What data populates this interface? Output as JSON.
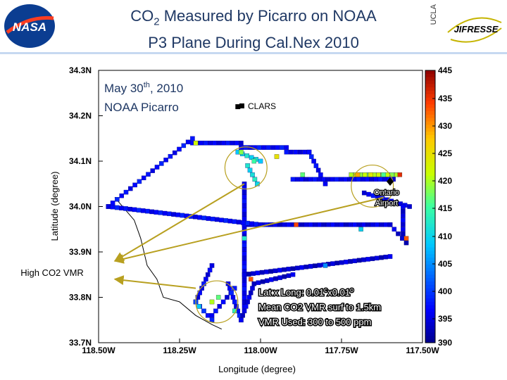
{
  "header": {
    "title_prefix": "CO",
    "title_sub": "2",
    "title_rest": " Measured by Picarro on NOAA",
    "title_line2": "P3 Plane During Cal.Nex 2010",
    "logo_left": "NASA",
    "logo_right_1": "UCLA",
    "logo_right_2": "JIFRESSE"
  },
  "annotations": {
    "date_prefix": "May 30",
    "date_sup": "th",
    "date_suffix": ", 2010",
    "instrument": "NOAA Picarro",
    "legend_clars": "CLARS",
    "airport_1": "Ontario",
    "airport_2": "Airport",
    "high_co2": "High CO2 VMR",
    "info_1_prefix": "Lat x Long: 0.01",
    "info_1_mid": "x0.01",
    "info_1_deg": "o",
    "info_2": "Mean CO2 VMR surf to 1.5km",
    "info_3": "VMR Used: 300 to 500 ppm"
  },
  "chart_data": {
    "type": "heatmap",
    "xlabel": "Longitude (degree)",
    "ylabel": "Latitude (degree)",
    "xlim": [
      -118.5,
      -117.5
    ],
    "ylim": [
      33.7,
      34.3
    ],
    "x_ticks": [
      -118.5,
      -118.25,
      -118.0,
      -117.75,
      -117.5
    ],
    "x_tick_labels": [
      "118.50W",
      "118.25W",
      "118.00W",
      "117.75W",
      "117.50W"
    ],
    "y_ticks": [
      34.3,
      34.2,
      34.1,
      34.0,
      33.9,
      33.8,
      33.7
    ],
    "y_tick_labels": [
      "34.3N",
      "34.2N",
      "34.1N",
      "34.0N",
      "33.9N",
      "33.8N",
      "33.7N"
    ],
    "colorbar": {
      "min": 390,
      "max": 445,
      "ticks": [
        445,
        435,
        430,
        425,
        420,
        415,
        410,
        405,
        400,
        395,
        390
      ],
      "tick_labels": [
        "445",
        "435",
        "430",
        "425",
        "420",
        "415",
        "410",
        "405",
        "400",
        "395",
        "390"
      ]
    },
    "markers": [
      {
        "name": "CLARS",
        "lon": -118.07,
        "lat": 34.22
      },
      {
        "name": "Ontario Airport",
        "lon": -117.6,
        "lat": 34.055
      }
    ],
    "highlight_circles": [
      {
        "lon": -118.045,
        "lat": 34.085,
        "r_lon": 0.065
      },
      {
        "lon": -117.655,
        "lat": 34.045,
        "r_lon": 0.065
      },
      {
        "lon": -118.135,
        "lat": 33.79,
        "r_lon": 0.065
      }
    ],
    "track_segments": [
      {
        "from": [
          -118.47,
          34.0
        ],
        "to": [
          -118.21,
          34.15
        ],
        "value": 397
      },
      {
        "from": [
          -118.21,
          34.14
        ],
        "to": [
          -118.06,
          34.14
        ],
        "value": 396
      },
      {
        "from": [
          -118.06,
          34.13
        ],
        "to": [
          -117.92,
          34.13
        ],
        "value": 397
      },
      {
        "from": [
          -117.92,
          34.12
        ],
        "to": [
          -117.85,
          34.12
        ],
        "value": 396
      },
      {
        "from": [
          -117.85,
          34.12
        ],
        "to": [
          -117.8,
          34.05
        ],
        "value": 397
      },
      {
        "from": [
          -118.07,
          34.12
        ],
        "to": [
          -118.0,
          34.1
        ],
        "value": 412
      },
      {
        "from": [
          -118.04,
          34.09
        ],
        "to": [
          -118.01,
          34.05
        ],
        "value": 413
      },
      {
        "from": [
          -118.05,
          34.05
        ],
        "to": [
          -118.05,
          33.78
        ],
        "value": 396
      },
      {
        "from": [
          -118.05,
          33.96
        ],
        "to": [
          -117.6,
          33.96
        ],
        "value": 395
      },
      {
        "from": [
          -117.6,
          33.96
        ],
        "to": [
          -117.55,
          33.92
        ],
        "value": 394
      },
      {
        "from": [
          -118.47,
          34.0
        ],
        "to": [
          -118.0,
          33.96
        ],
        "value": 397
      },
      {
        "from": [
          -118.05,
          33.85
        ],
        "to": [
          -117.6,
          33.89
        ],
        "value": 394
      },
      {
        "from": [
          -118.15,
          33.87
        ],
        "to": [
          -118.2,
          33.79
        ],
        "value": 396
      },
      {
        "from": [
          -118.2,
          33.79
        ],
        "to": [
          -118.15,
          33.75
        ],
        "value": 399
      },
      {
        "from": [
          -118.15,
          33.76
        ],
        "to": [
          -118.08,
          33.82
        ],
        "value": 396
      },
      {
        "from": [
          -118.1,
          33.83
        ],
        "to": [
          -118.06,
          33.75
        ],
        "value": 397
      },
      {
        "from": [
          -118.06,
          33.75
        ],
        "to": [
          -118.02,
          33.83
        ],
        "value": 395
      },
      {
        "from": [
          -118.02,
          33.83
        ],
        "to": [
          -117.9,
          33.85
        ],
        "value": 394
      },
      {
        "from": [
          -117.9,
          34.06
        ],
        "to": [
          -117.59,
          34.06
        ],
        "value": 396
      },
      {
        "from": [
          -117.72,
          34.07
        ],
        "to": [
          -117.58,
          34.07
        ],
        "value": 423
      },
      {
        "from": [
          -117.68,
          34.03
        ],
        "to": [
          -117.54,
          34.0
        ],
        "value": 396
      },
      {
        "from": [
          -117.56,
          34.0
        ],
        "to": [
          -117.56,
          33.93
        ],
        "value": 395
      }
    ],
    "track_hotspots": [
      {
        "lon": -118.06,
        "lat": 34.12,
        "value": 421
      },
      {
        "lon": -118.02,
        "lat": 34.1,
        "value": 417
      },
      {
        "lon": -117.95,
        "lat": 34.11,
        "value": 428
      },
      {
        "lon": -117.87,
        "lat": 34.07,
        "value": 419
      },
      {
        "lon": -118.2,
        "lat": 34.14,
        "value": 425
      },
      {
        "lon": -117.7,
        "lat": 34.07,
        "value": 433
      },
      {
        "lon": -117.66,
        "lat": 34.07,
        "value": 427
      },
      {
        "lon": -117.62,
        "lat": 34.07,
        "value": 418
      },
      {
        "lon": -117.57,
        "lat": 34.07,
        "value": 440
      },
      {
        "lon": -117.89,
        "lat": 33.96,
        "value": 438
      },
      {
        "lon": -117.55,
        "lat": 33.93,
        "value": 437
      },
      {
        "lon": -118.15,
        "lat": 33.79,
        "value": 423
      },
      {
        "lon": -118.13,
        "lat": 33.8,
        "value": 419
      },
      {
        "lon": -118.19,
        "lat": 33.78,
        "value": 410
      },
      {
        "lon": -118.08,
        "lat": 33.77,
        "value": 416
      },
      {
        "lon": -118.03,
        "lat": 33.84,
        "value": 437
      },
      {
        "lon": -118.05,
        "lat": 33.93,
        "value": 414
      },
      {
        "lon": -117.69,
        "lat": 33.95,
        "value": 411
      },
      {
        "lon": -117.8,
        "lat": 33.87,
        "value": 406
      }
    ],
    "coastline": [
      [
        -118.45,
        34.02
      ],
      [
        -118.39,
        33.97
      ],
      [
        -118.37,
        33.93
      ],
      [
        -118.35,
        33.87
      ],
      [
        -118.32,
        33.84
      ],
      [
        -118.3,
        33.8
      ],
      [
        -118.25,
        33.79
      ],
      [
        -118.2,
        33.76
      ],
      [
        -118.15,
        33.74
      ],
      [
        -118.12,
        33.73
      ]
    ],
    "arrows": [
      {
        "from": [
          -118.05,
          34.05
        ],
        "to": [
          -118.45,
          33.88
        ]
      },
      {
        "from": [
          -117.62,
          34.02
        ],
        "to": [
          -118.45,
          33.88
        ]
      },
      {
        "from": [
          -118.2,
          33.82
        ],
        "to": [
          -118.45,
          33.84
        ]
      }
    ]
  }
}
